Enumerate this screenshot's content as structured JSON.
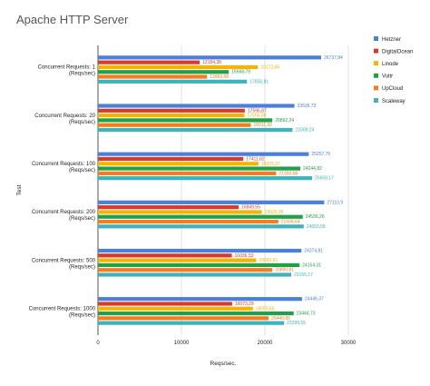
{
  "chart_data": {
    "type": "bar",
    "orientation": "horizontal",
    "title": "Apache HTTP Server",
    "xlabel": "Reqs/sec.",
    "ylabel": "Test",
    "xlim": [
      0,
      30000
    ],
    "xticks": [
      0,
      10000,
      20000,
      30000
    ],
    "grid": true,
    "legend_position": "right",
    "categories": [
      [
        "Concurrent Requests: 1",
        "(Reqs/sec)"
      ],
      [
        "Concurrent Requests: 20",
        "(Reqs/sec)"
      ],
      [
        "Concurrent Requests: 100",
        "(Reqs/sec)"
      ],
      [
        "Concurrent Requests: 200",
        "(Reqs/sec)"
      ],
      [
        "Concurrent Requests: 500",
        "(Reqs/sec)"
      ],
      [
        "Concurrent Requests: 1000",
        "(Reqs/sec)"
      ]
    ],
    "series": [
      {
        "name": "Hetzner",
        "color": "#4a7fdc",
        "values": [
          26737.84,
          23535.73,
          25257.75,
          27110.9,
          24374.81,
          24446.37
        ],
        "labels": [
          "26737,84",
          "23535,73",
          "25257,75",
          "27110,9",
          "24374,81",
          "24446,37"
        ]
      },
      {
        "name": "DigitalOcean",
        "color": "#d93a2b",
        "values": [
          12184.38,
          17596.87,
          17411.62,
          16849.55,
          16036.53,
          16073.29
        ],
        "labels": [
          "12184,38",
          "17596,87",
          "17411,62",
          "16849,55",
          "16036,53",
          "16073,29"
        ]
      },
      {
        "name": "Linode",
        "color": "#f4b400",
        "values": [
          19172.85,
          17555.08,
          19225.37,
          19626.06,
          18960.61,
          18555.65
        ],
        "labels": [
          "19172,85",
          "17555,08",
          "19225,37",
          "19626,06",
          "18960,61",
          "18555,65"
        ]
      },
      {
        "name": "Vultr",
        "color": "#20a147",
        "values": [
          15668.79,
          20892.24,
          24244.82,
          24536.26,
          24154.31,
          23444.73
        ],
        "labels": [
          "15668,79",
          "20892,24",
          "24244,82",
          "24536,26",
          "24154,31",
          "23444,73"
        ]
      },
      {
        "name": "UpCloud",
        "color": "#f87c1c",
        "values": [
          13063.68,
          18311.92,
          21350.88,
          21606.64,
          20890.81,
          20440.85
        ],
        "labels": [
          "13063,68",
          "18311,92",
          "21350,88",
          "21606,64",
          "20890,81",
          "20440,85"
        ]
      },
      {
        "name": "Scaleway",
        "color": "#3cb4bd",
        "values": [
          17856.81,
          23308.24,
          25658.17,
          24653.58,
          23155.17,
          22299.55
        ],
        "labels": [
          "17856,81",
          "23308,24",
          "25658,17",
          "24653,58",
          "23155,17",
          "22299,55"
        ]
      }
    ]
  }
}
